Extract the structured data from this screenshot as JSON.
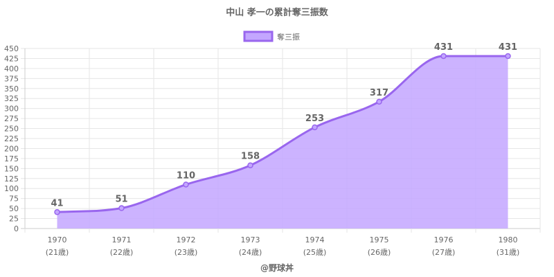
{
  "chart_data": {
    "type": "line",
    "title": "中山 孝一の累計奪三振数",
    "categories": [
      "1970",
      "1971",
      "1972",
      "1973",
      "1974",
      "1975",
      "1976",
      "1980"
    ],
    "category_sublabels": [
      "(21歳)",
      "(22歳)",
      "(23歳)",
      "(24歳)",
      "(25歳)",
      "(26歳)",
      "(27歳)",
      "(31歳)"
    ],
    "series": [
      {
        "name": "奪三振",
        "values": [
          41,
          51,
          110,
          158,
          253,
          317,
          431,
          431
        ]
      }
    ],
    "ylim": [
      0,
      450
    ],
    "ytick_step": 25,
    "grid": true,
    "legend_position": "top-center",
    "fill_area": true,
    "line_color": "#9966ee",
    "fill_color": "#c3a6ff",
    "credit": "@野球丼"
  }
}
